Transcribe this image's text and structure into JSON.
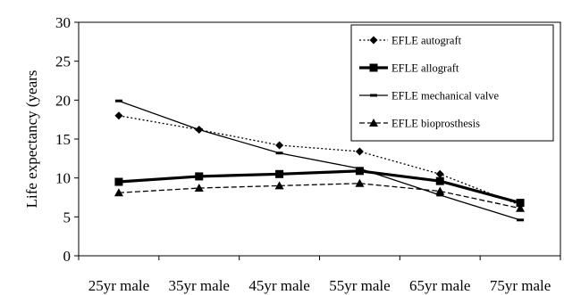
{
  "chart_data": {
    "type": "line",
    "title": "",
    "xlabel": "",
    "ylabel": "Life expectancy (years",
    "categories": [
      "25yr male",
      "35yr male",
      "45yr male",
      "55yr male",
      "65yr male",
      "75yr male"
    ],
    "ylim": [
      0,
      30
    ],
    "yticks": [
      0,
      5,
      10,
      15,
      20,
      25,
      30
    ],
    "grid": false,
    "legend_position": "top-right",
    "series": [
      {
        "name": "EFLE autograft",
        "values": [
          18.0,
          16.2,
          14.2,
          13.4,
          10.5,
          6.5
        ],
        "marker": "diamond",
        "line": "dotted",
        "color": "#000000"
      },
      {
        "name": "EFLE allograft",
        "values": [
          9.5,
          10.2,
          10.5,
          10.9,
          9.6,
          6.8
        ],
        "marker": "square",
        "line": "thick",
        "color": "#000000"
      },
      {
        "name": "EFLE mechanical valve",
        "values": [
          19.9,
          16.2,
          13.2,
          11.2,
          7.8,
          4.6
        ],
        "marker": "dash",
        "line": "solid",
        "color": "#000000"
      },
      {
        "name": "EFLE bioprosthesis",
        "values": [
          8.1,
          8.7,
          9.0,
          9.3,
          8.3,
          6.1
        ],
        "marker": "triangle",
        "line": "dashed",
        "color": "#000000"
      }
    ]
  }
}
